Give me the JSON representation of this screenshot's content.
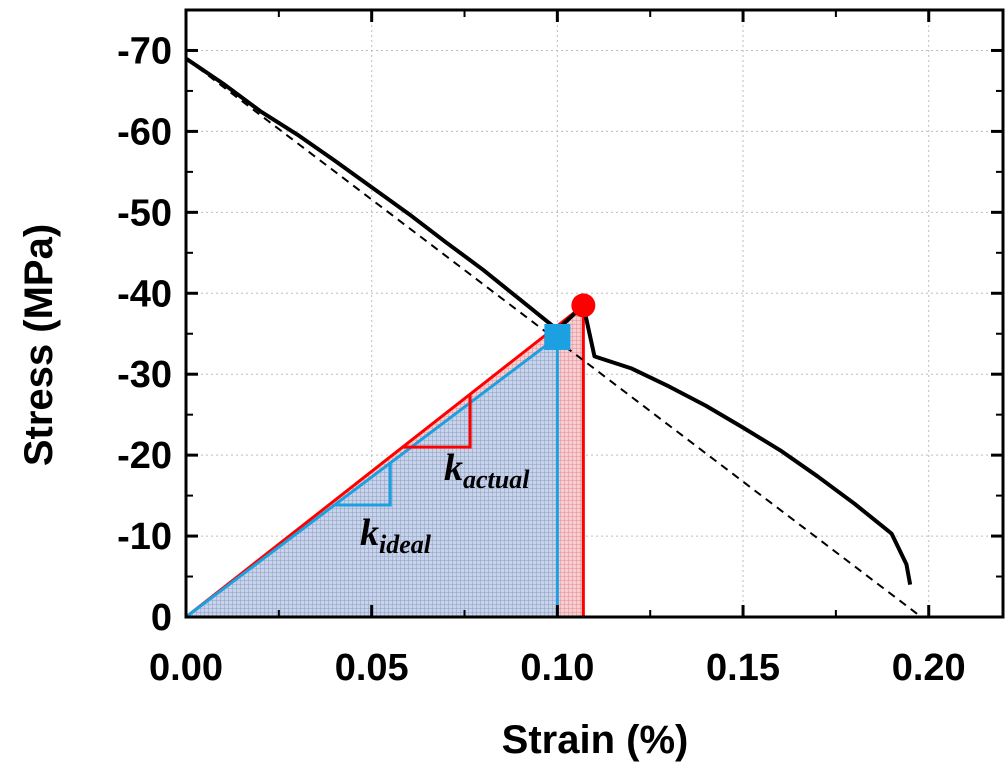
{
  "chart_data": {
    "type": "line",
    "xlabel": "Strain (%)",
    "ylabel": "Stress (MPa)",
    "xlim": [
      0.0,
      0.22
    ],
    "ylim": [
      0,
      -75
    ],
    "x_ticks": [
      "0.00",
      "0.05",
      "0.10",
      "0.15",
      "0.20"
    ],
    "y_ticks": [
      "0",
      "-10",
      "-20",
      "-30",
      "-40",
      "-50",
      "-60",
      "-70"
    ],
    "grid": true,
    "series": [
      {
        "style": "solid-black",
        "x": [
          0.0,
          0.01,
          0.02,
          0.03,
          0.04,
          0.05,
          0.06,
          0.07,
          0.08,
          0.09,
          0.1,
          0.107,
          0.11,
          0.12,
          0.13,
          0.14,
          0.15,
          0.16,
          0.17,
          0.18,
          0.19,
          0.194,
          0.195
        ],
        "y": [
          -69,
          -65.9,
          -62.5,
          -59.6,
          -56.4,
          -53.1,
          -49.8,
          -46.3,
          -42.9,
          -39.2,
          -35.5,
          -38.5,
          -32.2,
          -30.7,
          -28.5,
          -26.1,
          -23.4,
          -20.6,
          -17.4,
          -14.0,
          -10.3,
          -6.5,
          -4.0
        ]
      },
      {
        "style": "dashed-black",
        "x": [
          0.0,
          0.198
        ],
        "y": [
          -69,
          0
        ]
      }
    ],
    "annotations": {
      "red_point": {
        "x": 0.107,
        "y": -38.5,
        "color": "#ff0000"
      },
      "blue_point": {
        "x": 0.1,
        "y": -34.6,
        "color": "#1ba1e2"
      },
      "k_actual": {
        "base": "k",
        "subscript": "actual"
      },
      "k_ideal": {
        "base": "k",
        "subscript": "ideal"
      }
    }
  }
}
